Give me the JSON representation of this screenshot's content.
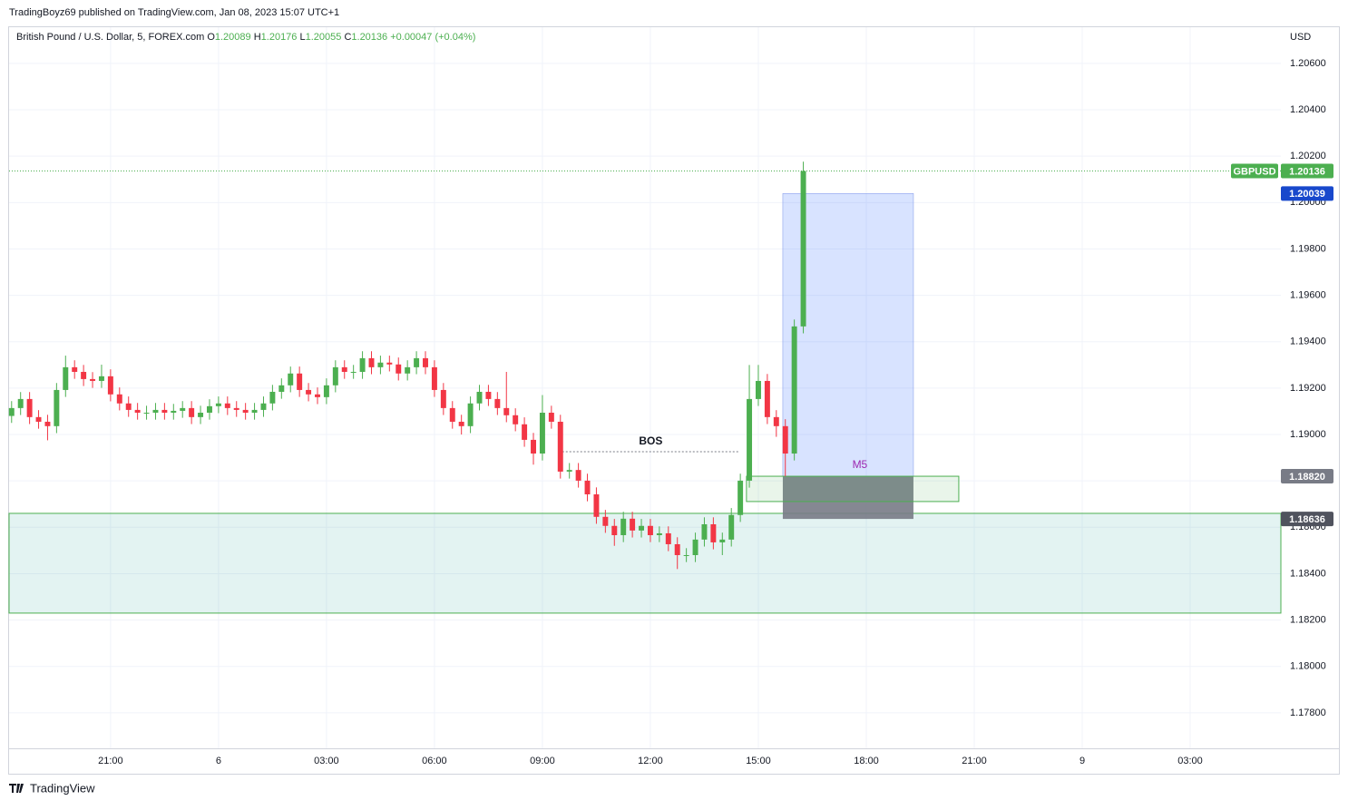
{
  "header": "TradingBoyz69 published on TradingView.com, Jan 08, 2023 15:07 UTC+1",
  "footer": "TradingView",
  "legend": {
    "symbol": "British Pound / U.S. Dollar, 5, FOREX.com",
    "ohlc": [
      {
        "key": "O",
        "value": "1.20089"
      },
      {
        "key": "H",
        "value": "1.20176"
      },
      {
        "key": "L",
        "value": "1.20055"
      },
      {
        "key": "C",
        "value": "1.20136"
      }
    ],
    "change": "+0.00047 (+0.04%)"
  },
  "chart_data": {
    "type": "candlestick",
    "currency": "USD",
    "up_color": "#4caf50",
    "down_color": "#f23645",
    "grid": true,
    "xlim": [
      -5.82,
      29.52
    ],
    "ylim": [
      1.17647,
      1.20756
    ],
    "xticks": [
      {
        "value": -3,
        "label": "21:00"
      },
      {
        "value": 0,
        "label": "6"
      },
      {
        "value": 3,
        "label": "03:00"
      },
      {
        "value": 6,
        "label": "06:00"
      },
      {
        "value": 9,
        "label": "09:00"
      },
      {
        "value": 12,
        "label": "12:00"
      },
      {
        "value": 15,
        "label": "15:00"
      },
      {
        "value": 18,
        "label": "18:00"
      },
      {
        "value": 21,
        "label": "21:00"
      },
      {
        "value": 24,
        "label": "9"
      },
      {
        "value": 27,
        "label": "03:00"
      }
    ],
    "yticks": [
      {
        "value": 1.206,
        "label": "1.20600"
      },
      {
        "value": 1.204,
        "label": "1.20400"
      },
      {
        "value": 1.202,
        "label": "1.20200"
      },
      {
        "value": 1.2,
        "label": "1.20000"
      },
      {
        "value": 1.198,
        "label": "1.19800"
      },
      {
        "value": 1.196,
        "label": "1.19600"
      },
      {
        "value": 1.194,
        "label": "1.19400"
      },
      {
        "value": 1.192,
        "label": "1.19200"
      },
      {
        "value": 1.19,
        "label": "1.19000"
      },
      {
        "value": 1.188,
        "label": "1.18800"
      },
      {
        "value": 1.186,
        "label": "1.18600"
      },
      {
        "value": 1.184,
        "label": "1.18400"
      },
      {
        "value": 1.182,
        "label": "1.18200"
      },
      {
        "value": 1.18,
        "label": "1.18000"
      },
      {
        "value": 1.178,
        "label": "1.17800"
      }
    ],
    "x": [
      -5.75,
      -5.5,
      -5.25,
      -5,
      -4.75,
      -4.5,
      -4.25,
      -4,
      -3.75,
      -3.5,
      -3.25,
      -3,
      -2.75,
      -2.5,
      -2.25,
      -2,
      -1.75,
      -1.5,
      -1.25,
      -1,
      -0.75,
      -0.5,
      -0.25,
      0,
      0.25,
      0.5,
      0.75,
      1,
      1.25,
      1.5,
      1.75,
      2,
      2.25,
      2.5,
      2.75,
      3,
      3.25,
      3.5,
      3.75,
      4,
      4.25,
      4.5,
      4.75,
      5,
      5.25,
      5.5,
      5.75,
      6,
      6.25,
      6.5,
      6.75,
      7,
      7.25,
      7.5,
      7.75,
      8,
      8.25,
      8.5,
      8.75,
      9,
      9.25,
      9.5,
      9.75,
      10,
      10.25,
      10.5,
      10.75,
      11,
      11.25,
      11.5,
      11.75,
      12,
      12.25,
      12.5,
      12.75,
      13,
      13.25,
      13.5,
      13.75,
      14,
      14.25,
      14.5,
      14.75,
      15,
      15.25,
      15.5,
      15.75,
      16,
      16.25
    ],
    "open": [
      1.1908,
      1.19114,
      1.19153,
      1.19075,
      1.19055,
      1.19036,
      1.19192,
      1.1929,
      1.1927,
      1.19239,
      1.19231,
      1.19251,
      1.19173,
      1.19134,
      1.19106,
      1.19094,
      1.19094,
      1.19106,
      1.19094,
      1.19102,
      1.19114,
      1.19075,
      1.19094,
      1.19122,
      1.19134,
      1.19114,
      1.19106,
      1.19094,
      1.19106,
      1.19134,
      1.19184,
      1.19212,
      1.19263,
      1.19192,
      1.19173,
      1.19161,
      1.19212,
      1.1929,
      1.1927,
      1.1927,
      1.19329,
      1.1929,
      1.1931,
      1.19302,
      1.19263,
      1.1929,
      1.19329,
      1.1929,
      1.19192,
      1.19114,
      1.19055,
      1.19036,
      1.19134,
      1.19184,
      1.19153,
      1.19114,
      1.19083,
      1.19044,
      1.18977,
      1.18918,
      1.19094,
      1.19055,
      1.1884,
      1.18847,
      1.18801,
      1.18742,
      1.18645,
      1.18606,
      1.18566,
      1.18637,
      1.18586,
      1.18606,
      1.18566,
      1.18574,
      1.18527,
      1.1848,
      1.1848,
      1.18547,
      1.18613,
      1.18535,
      1.18547,
      1.18653,
      1.18801,
      1.19153,
      1.19231,
      1.19075,
      1.19036,
      1.18918,
      1.19466
    ],
    "high": [
      1.19144,
      1.19183,
      1.19183,
      1.19105,
      1.19085,
      1.19222,
      1.1934,
      1.1932,
      1.193,
      1.19269,
      1.19301,
      1.19281,
      1.19203,
      1.19164,
      1.19136,
      1.19124,
      1.19136,
      1.19136,
      1.19132,
      1.19144,
      1.19144,
      1.19124,
      1.19152,
      1.19164,
      1.19164,
      1.19144,
      1.19136,
      1.19136,
      1.19164,
      1.19214,
      1.19242,
      1.19293,
      1.19293,
      1.19222,
      1.19203,
      1.19242,
      1.1932,
      1.1932,
      1.193,
      1.19359,
      1.19359,
      1.1934,
      1.1934,
      1.19332,
      1.1932,
      1.19359,
      1.19359,
      1.1932,
      1.19222,
      1.19144,
      1.19085,
      1.19164,
      1.19214,
      1.19214,
      1.19183,
      1.1927,
      1.19113,
      1.19074,
      1.19007,
      1.1917,
      1.19124,
      1.19085,
      1.18877,
      1.18877,
      1.18831,
      1.18772,
      1.18675,
      1.18636,
      1.18667,
      1.18667,
      1.18636,
      1.18636,
      1.18604,
      1.18604,
      1.18557,
      1.1851,
      1.18577,
      1.18643,
      1.18643,
      1.18577,
      1.18683,
      1.18831,
      1.193,
      1.193,
      1.19261,
      1.19105,
      1.19066,
      1.19496,
      1.20176
    ],
    "low": [
      1.1905,
      1.19084,
      1.19045,
      1.19025,
      1.18975,
      1.19006,
      1.19162,
      1.1924,
      1.19209,
      1.19201,
      1.19201,
      1.19143,
      1.19104,
      1.19076,
      1.19064,
      1.19064,
      1.19064,
      1.19064,
      1.19064,
      1.19072,
      1.19045,
      1.19045,
      1.19064,
      1.19092,
      1.19084,
      1.19076,
      1.19064,
      1.19064,
      1.19076,
      1.19104,
      1.19154,
      1.19182,
      1.19162,
      1.19143,
      1.19131,
      1.19131,
      1.19182,
      1.1924,
      1.1924,
      1.1924,
      1.1926,
      1.1926,
      1.19272,
      1.19233,
      1.19233,
      1.1926,
      1.1926,
      1.19162,
      1.19084,
      1.19025,
      1.19,
      1.19006,
      1.19104,
      1.19123,
      1.19084,
      1.19053,
      1.19014,
      1.18947,
      1.1887,
      1.18888,
      1.19025,
      1.1881,
      1.1881,
      1.18771,
      1.18712,
      1.18615,
      1.18576,
      1.1852,
      1.18536,
      1.18556,
      1.18556,
      1.18536,
      1.18536,
      1.18497,
      1.1842,
      1.1845,
      1.1845,
      1.18517,
      1.18505,
      1.1848,
      1.18517,
      1.18623,
      1.18771,
      1.19123,
      1.19045,
      1.1899,
      1.1882,
      1.18888,
      1.19436
    ],
    "close": [
      1.19114,
      1.19153,
      1.19075,
      1.19055,
      1.19036,
      1.19192,
      1.1929,
      1.1927,
      1.19239,
      1.19231,
      1.19251,
      1.19173,
      1.19134,
      1.19106,
      1.19094,
      1.19094,
      1.19106,
      1.19094,
      1.19102,
      1.19114,
      1.19075,
      1.19094,
      1.19122,
      1.19134,
      1.19114,
      1.19106,
      1.19094,
      1.19106,
      1.19134,
      1.19184,
      1.19212,
      1.19263,
      1.19192,
      1.19173,
      1.19161,
      1.19212,
      1.1929,
      1.1927,
      1.1927,
      1.19329,
      1.1929,
      1.1931,
      1.19302,
      1.19263,
      1.1929,
      1.19329,
      1.1929,
      1.19192,
      1.19114,
      1.19055,
      1.19036,
      1.19134,
      1.19184,
      1.19153,
      1.19114,
      1.19083,
      1.19044,
      1.18977,
      1.18918,
      1.19094,
      1.19055,
      1.1884,
      1.18847,
      1.18801,
      1.18742,
      1.18645,
      1.18606,
      1.18566,
      1.18637,
      1.18586,
      1.18606,
      1.18566,
      1.18574,
      1.18527,
      1.1848,
      1.1848,
      1.18547,
      1.18613,
      1.18535,
      1.18547,
      1.18653,
      1.18801,
      1.19153,
      1.19231,
      1.19075,
      1.19036,
      1.18918,
      1.19466,
      1.20136
    ],
    "price_labels": [
      {
        "name": "GBPUSD",
        "value": 1.20136,
        "label": "1.20136",
        "color": "#4caf50"
      },
      {
        "value": 1.20039,
        "label": "1.20039",
        "color": "#1848cc"
      },
      {
        "value": 1.1882,
        "label": "1.18820",
        "color": "#787b86"
      },
      {
        "value": 1.18636,
        "label": "1.18636",
        "color": "#50535e"
      }
    ],
    "demand_zone": {
      "x": [
        -5.82,
        29.52
      ],
      "y": [
        1.1823,
        1.1866
      ],
      "color": "#26a69a"
    },
    "position": {
      "x": [
        15.68,
        19.31
      ],
      "target": 1.20039,
      "entry": 1.1882,
      "stop": 1.18636
    },
    "m5_zone": {
      "text": "M5",
      "x": [
        14.67,
        20.57
      ],
      "y": [
        1.18711,
        1.1882
      ]
    },
    "bos": {
      "text": "BOS",
      "x": [
        9.55,
        14.47
      ],
      "y": 1.18926
    }
  }
}
